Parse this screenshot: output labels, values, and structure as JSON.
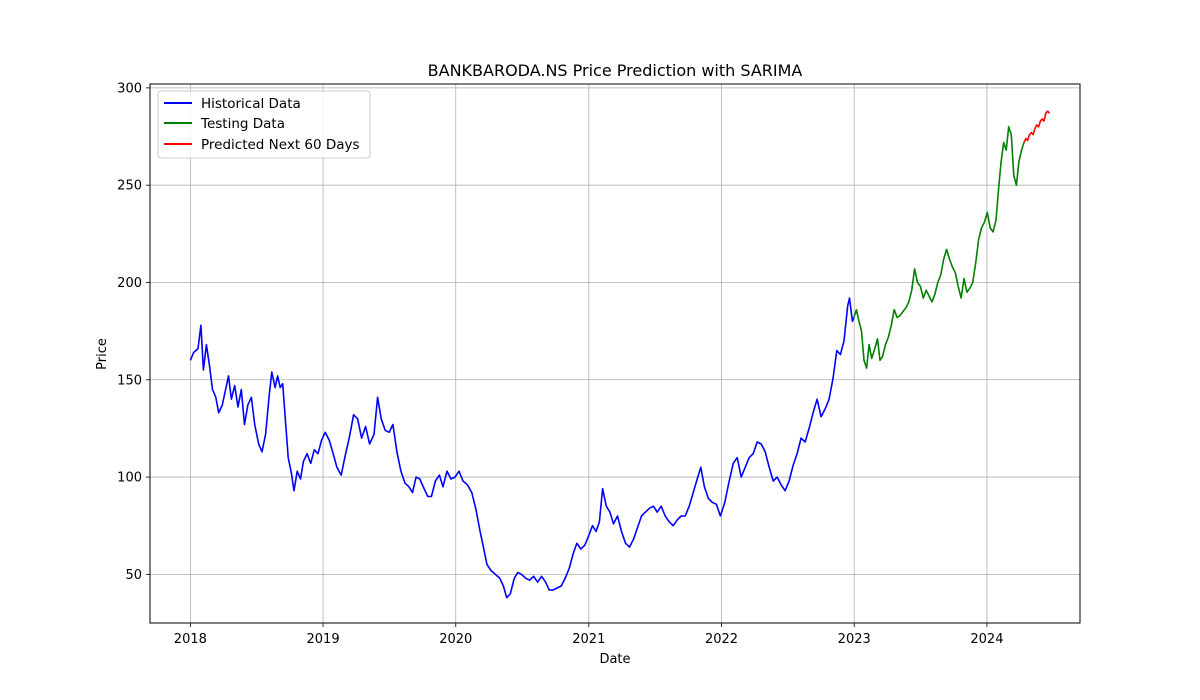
{
  "chart_data": {
    "type": "line",
    "title": "BANKBARODA.NS Price Prediction with SARIMA",
    "xlabel": "Date",
    "ylabel": "Price",
    "xlim": [
      "2017-09-12",
      "2024-09-13"
    ],
    "ylim": [
      25,
      302
    ],
    "x_ticks": [
      "2018",
      "2019",
      "2020",
      "2021",
      "2022",
      "2023",
      "2024"
    ],
    "x_tick_dates": [
      "2018-01-01",
      "2019-01-01",
      "2020-01-01",
      "2021-01-01",
      "2022-01-01",
      "2023-01-01",
      "2024-01-01"
    ],
    "y_ticks": [
      50,
      100,
      150,
      200,
      250,
      300
    ],
    "grid": true,
    "legend_position": "top-left",
    "series": [
      {
        "name": "Historical Data",
        "color": "#0000ff",
        "points": [
          [
            "2018-01-01",
            160
          ],
          [
            "2018-01-10",
            164
          ],
          [
            "2018-01-22",
            166
          ],
          [
            "2018-01-30",
            178
          ],
          [
            "2018-02-06",
            155
          ],
          [
            "2018-02-14",
            168
          ],
          [
            "2018-02-22",
            158
          ],
          [
            "2018-03-03",
            145
          ],
          [
            "2018-03-12",
            141
          ],
          [
            "2018-03-20",
            133
          ],
          [
            "2018-03-30",
            137
          ],
          [
            "2018-04-08",
            145
          ],
          [
            "2018-04-16",
            152
          ],
          [
            "2018-04-24",
            140
          ],
          [
            "2018-05-03",
            147
          ],
          [
            "2018-05-12",
            136
          ],
          [
            "2018-05-21",
            145
          ],
          [
            "2018-05-30",
            127
          ],
          [
            "2018-06-08",
            137
          ],
          [
            "2018-06-18",
            141
          ],
          [
            "2018-06-27",
            127
          ],
          [
            "2018-07-08",
            117
          ],
          [
            "2018-07-17",
            113
          ],
          [
            "2018-07-27",
            122
          ],
          [
            "2018-08-06",
            142
          ],
          [
            "2018-08-13",
            154
          ],
          [
            "2018-08-22",
            146
          ],
          [
            "2018-08-29",
            152
          ],
          [
            "2018-09-05",
            146
          ],
          [
            "2018-09-12",
            148
          ],
          [
            "2018-09-20",
            128
          ],
          [
            "2018-09-27",
            110
          ],
          [
            "2018-10-06",
            102
          ],
          [
            "2018-10-13",
            93
          ],
          [
            "2018-10-22",
            103
          ],
          [
            "2018-10-31",
            99
          ],
          [
            "2018-11-08",
            108
          ],
          [
            "2018-11-18",
            112
          ],
          [
            "2018-11-28",
            107
          ],
          [
            "2018-12-08",
            114
          ],
          [
            "2018-12-18",
            112
          ],
          [
            "2018-12-28",
            119
          ],
          [
            "2019-01-07",
            123
          ],
          [
            "2019-01-18",
            119
          ],
          [
            "2019-01-29",
            112
          ],
          [
            "2019-02-08",
            105
          ],
          [
            "2019-02-20",
            101
          ],
          [
            "2019-03-03",
            111
          ],
          [
            "2019-03-14",
            120
          ],
          [
            "2019-03-26",
            132
          ],
          [
            "2019-04-06",
            130
          ],
          [
            "2019-04-17",
            120
          ],
          [
            "2019-04-28",
            126
          ],
          [
            "2019-05-09",
            117
          ],
          [
            "2019-05-21",
            122
          ],
          [
            "2019-05-31",
            141
          ],
          [
            "2019-06-10",
            130
          ],
          [
            "2019-06-21",
            124
          ],
          [
            "2019-07-02",
            123
          ],
          [
            "2019-07-12",
            127
          ],
          [
            "2019-07-23",
            113
          ],
          [
            "2019-08-03",
            103
          ],
          [
            "2019-08-14",
            97
          ],
          [
            "2019-08-25",
            95
          ],
          [
            "2019-09-04",
            92
          ],
          [
            "2019-09-14",
            100
          ],
          [
            "2019-09-24",
            99
          ],
          [
            "2019-10-06",
            94
          ],
          [
            "2019-10-16",
            90
          ],
          [
            "2019-10-26",
            90
          ],
          [
            "2019-11-06",
            98
          ],
          [
            "2019-11-17",
            101
          ],
          [
            "2019-11-27",
            95
          ],
          [
            "2019-12-08",
            103
          ],
          [
            "2019-12-19",
            99
          ],
          [
            "2019-12-30",
            100
          ],
          [
            "2020-01-10",
            103
          ],
          [
            "2020-01-21",
            98
          ],
          [
            "2020-02-02",
            96
          ],
          [
            "2020-02-14",
            92
          ],
          [
            "2020-02-26",
            83
          ],
          [
            "2020-03-08",
            72
          ],
          [
            "2020-03-17",
            64
          ],
          [
            "2020-03-27",
            55
          ],
          [
            "2020-04-07",
            52
          ],
          [
            "2020-04-19",
            50
          ],
          [
            "2020-05-01",
            48
          ],
          [
            "2020-05-11",
            44
          ],
          [
            "2020-05-20",
            38
          ],
          [
            "2020-05-30",
            40
          ],
          [
            "2020-06-10",
            48
          ],
          [
            "2020-06-20",
            51
          ],
          [
            "2020-06-30",
            50
          ],
          [
            "2020-07-11",
            48
          ],
          [
            "2020-07-22",
            47
          ],
          [
            "2020-08-02",
            49
          ],
          [
            "2020-08-13",
            46
          ],
          [
            "2020-08-24",
            49
          ],
          [
            "2020-09-04",
            46
          ],
          [
            "2020-09-14",
            42
          ],
          [
            "2020-09-25",
            42
          ],
          [
            "2020-10-06",
            43
          ],
          [
            "2020-10-17",
            44
          ],
          [
            "2020-10-28",
            48
          ],
          [
            "2020-11-08",
            53
          ],
          [
            "2020-11-18",
            60
          ],
          [
            "2020-11-29",
            66
          ],
          [
            "2020-12-10",
            63
          ],
          [
            "2020-12-21",
            65
          ],
          [
            "2021-01-01",
            70
          ],
          [
            "2021-01-11",
            75
          ],
          [
            "2021-01-21",
            72
          ],
          [
            "2021-01-30",
            77
          ],
          [
            "2021-02-08",
            94
          ],
          [
            "2021-02-18",
            85
          ],
          [
            "2021-02-28",
            82
          ],
          [
            "2021-03-10",
            76
          ],
          [
            "2021-03-21",
            80
          ],
          [
            "2021-04-01",
            72
          ],
          [
            "2021-04-12",
            66
          ],
          [
            "2021-04-23",
            64
          ],
          [
            "2021-05-04",
            68
          ],
          [
            "2021-05-15",
            74
          ],
          [
            "2021-05-26",
            80
          ],
          [
            "2021-06-06",
            82
          ],
          [
            "2021-06-17",
            84
          ],
          [
            "2021-06-28",
            85
          ],
          [
            "2021-07-08",
            82
          ],
          [
            "2021-07-19",
            85
          ],
          [
            "2021-07-30",
            80
          ],
          [
            "2021-08-10",
            77
          ],
          [
            "2021-08-21",
            75
          ],
          [
            "2021-09-01",
            78
          ],
          [
            "2021-09-12",
            80
          ],
          [
            "2021-09-23",
            80
          ],
          [
            "2021-10-04",
            85
          ],
          [
            "2021-10-15",
            92
          ],
          [
            "2021-10-26",
            99
          ],
          [
            "2021-11-05",
            105
          ],
          [
            "2021-11-15",
            95
          ],
          [
            "2021-11-26",
            89
          ],
          [
            "2021-12-07",
            87
          ],
          [
            "2021-12-18",
            86
          ],
          [
            "2021-12-29",
            80
          ],
          [
            "2022-01-10",
            87
          ],
          [
            "2022-01-21",
            97
          ],
          [
            "2022-02-02",
            107
          ],
          [
            "2022-02-13",
            110
          ],
          [
            "2022-02-24",
            100
          ],
          [
            "2022-03-07",
            105
          ],
          [
            "2022-03-18",
            110
          ],
          [
            "2022-03-29",
            112
          ],
          [
            "2022-04-09",
            118
          ],
          [
            "2022-04-20",
            117
          ],
          [
            "2022-05-01",
            113
          ],
          [
            "2022-05-12",
            105
          ],
          [
            "2022-05-23",
            98
          ],
          [
            "2022-06-03",
            100
          ],
          [
            "2022-06-14",
            96
          ],
          [
            "2022-06-25",
            93
          ],
          [
            "2022-07-06",
            98
          ],
          [
            "2022-07-17",
            106
          ],
          [
            "2022-07-28",
            112
          ],
          [
            "2022-08-08",
            120
          ],
          [
            "2022-08-19",
            118
          ],
          [
            "2022-08-30",
            125
          ],
          [
            "2022-09-10",
            133
          ],
          [
            "2022-09-21",
            140
          ],
          [
            "2022-10-02",
            131
          ],
          [
            "2022-10-13",
            135
          ],
          [
            "2022-10-24",
            140
          ],
          [
            "2022-11-04",
            151
          ],
          [
            "2022-11-14",
            165
          ],
          [
            "2022-11-24",
            163
          ],
          [
            "2022-12-04",
            170
          ],
          [
            "2022-12-14",
            188
          ],
          [
            "2022-12-19",
            192
          ],
          [
            "2022-12-27",
            180
          ],
          [
            "2022-12-31",
            182
          ]
        ]
      },
      {
        "name": "Testing Data",
        "color": "#008000",
        "points": [
          [
            "2022-12-31",
            182
          ],
          [
            "2023-01-07",
            186
          ],
          [
            "2023-01-14",
            180
          ],
          [
            "2023-01-21",
            175
          ],
          [
            "2023-01-28",
            160
          ],
          [
            "2023-02-04",
            156
          ],
          [
            "2023-02-11",
            168
          ],
          [
            "2023-02-18",
            161
          ],
          [
            "2023-02-25",
            165
          ],
          [
            "2023-03-06",
            171
          ],
          [
            "2023-03-13",
            160
          ],
          [
            "2023-03-20",
            162
          ],
          [
            "2023-03-28",
            168
          ],
          [
            "2023-04-05",
            172
          ],
          [
            "2023-04-13",
            178
          ],
          [
            "2023-04-21",
            186
          ],
          [
            "2023-04-29",
            182
          ],
          [
            "2023-05-07",
            183
          ],
          [
            "2023-05-15",
            185
          ],
          [
            "2023-05-23",
            187
          ],
          [
            "2023-05-31",
            190
          ],
          [
            "2023-06-08",
            196
          ],
          [
            "2023-06-16",
            207
          ],
          [
            "2023-06-24",
            200
          ],
          [
            "2023-07-02",
            198
          ],
          [
            "2023-07-10",
            192
          ],
          [
            "2023-07-18",
            196
          ],
          [
            "2023-07-26",
            193
          ],
          [
            "2023-08-03",
            190
          ],
          [
            "2023-08-11",
            194
          ],
          [
            "2023-08-19",
            200
          ],
          [
            "2023-08-27",
            204
          ],
          [
            "2023-09-04",
            212
          ],
          [
            "2023-09-12",
            217
          ],
          [
            "2023-09-20",
            212
          ],
          [
            "2023-09-28",
            208
          ],
          [
            "2023-10-06",
            205
          ],
          [
            "2023-10-14",
            198
          ],
          [
            "2023-10-22",
            192
          ],
          [
            "2023-10-30",
            202
          ],
          [
            "2023-11-07",
            195
          ],
          [
            "2023-11-15",
            197
          ],
          [
            "2023-11-23",
            200
          ],
          [
            "2023-12-01",
            210
          ],
          [
            "2023-12-09",
            222
          ],
          [
            "2023-12-17",
            228
          ],
          [
            "2023-12-25",
            231
          ],
          [
            "2024-01-02",
            236
          ],
          [
            "2024-01-10",
            228
          ],
          [
            "2024-01-18",
            226
          ],
          [
            "2024-01-26",
            232
          ],
          [
            "2024-02-03",
            250
          ],
          [
            "2024-02-09",
            262
          ],
          [
            "2024-02-16",
            272
          ],
          [
            "2024-02-23",
            268
          ],
          [
            "2024-03-01",
            280
          ],
          [
            "2024-03-08",
            276
          ],
          [
            "2024-03-15",
            255
          ],
          [
            "2024-03-22",
            250
          ],
          [
            "2024-03-29",
            262
          ],
          [
            "2024-04-05",
            268
          ],
          [
            "2024-04-12",
            272
          ]
        ]
      },
      {
        "name": "Predicted Next 60 Days",
        "color": "#ff0000",
        "points": [
          [
            "2024-04-12",
            272
          ],
          [
            "2024-04-17",
            274
          ],
          [
            "2024-04-22",
            273
          ],
          [
            "2024-04-27",
            276
          ],
          [
            "2024-05-02",
            277
          ],
          [
            "2024-05-07",
            276
          ],
          [
            "2024-05-12",
            279
          ],
          [
            "2024-05-17",
            281
          ],
          [
            "2024-05-22",
            280
          ],
          [
            "2024-05-27",
            283
          ],
          [
            "2024-06-01",
            284
          ],
          [
            "2024-06-06",
            283
          ],
          [
            "2024-06-11",
            287
          ],
          [
            "2024-06-16",
            288
          ],
          [
            "2024-06-21",
            287
          ]
        ]
      }
    ]
  }
}
